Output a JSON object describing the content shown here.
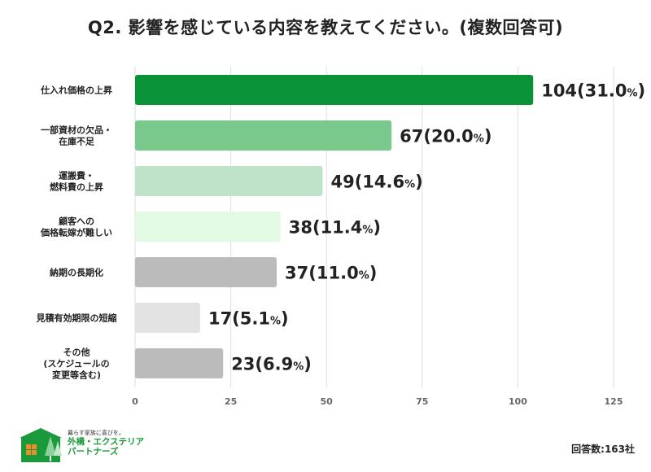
{
  "title": "Q2. 影響を感じている内容を教えてください。(複数回答可)",
  "chart_data": {
    "type": "bar",
    "orientation": "horizontal",
    "categories": [
      [
        "仕入れ価格の上昇"
      ],
      [
        "一部資材の欠品・",
        "在庫不足"
      ],
      [
        "運搬費・",
        "燃料費の上昇"
      ],
      [
        "顧客への",
        "価格転嫁が難しい"
      ],
      [
        "納期の長期化"
      ],
      [
        "見積有効期限の短縮"
      ],
      [
        "その他",
        "(スケジュールの",
        "変更等含む)"
      ]
    ],
    "values": [
      104,
      67,
      49,
      38,
      37,
      17,
      23
    ],
    "percent_labels": [
      "31.0",
      "20.0",
      "14.6",
      "11.4",
      "11.0",
      "5.1",
      "6.9"
    ],
    "bar_colors": [
      "#0a9236",
      "#7bc88d",
      "#bfe3c8",
      "#e2fae4",
      "#bbbbbb",
      "#e3e3e3",
      "#bbbbbb"
    ],
    "xlim": [
      0,
      125
    ],
    "xticks": [
      0,
      25,
      50,
      75,
      100,
      125
    ],
    "grid": true
  },
  "footer": {
    "tagline": "暮らす家族に喜びを。",
    "brand_line1": "外構・エクステリア",
    "brand_line2": "パートナーズ",
    "answer_count": "回答数:163社"
  },
  "colors": {
    "logo_green": "#1a9a3a",
    "logo_orange": "#f08c2a"
  }
}
